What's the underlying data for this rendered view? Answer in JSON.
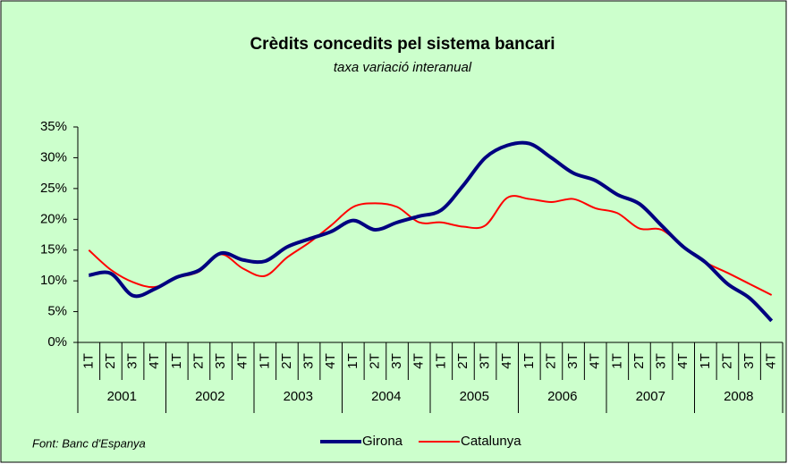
{
  "chart_data": {
    "type": "line",
    "title": "Crèdits concedits pel sistema bancari",
    "subtitle": "taxa variació interanual",
    "source": "Font: Banc d'Espanya",
    "categories": [
      "1T",
      "2T",
      "3T",
      "4T",
      "1T",
      "2T",
      "3T",
      "4T",
      "1T",
      "2T",
      "3T",
      "4T",
      "1T",
      "2T",
      "3T",
      "4T",
      "1T",
      "2T",
      "3T",
      "4T",
      "1T",
      "2T",
      "3T",
      "4T",
      "1T",
      "2T",
      "3T",
      "4T",
      "1T",
      "2T",
      "3T",
      "4T"
    ],
    "groups": [
      "2001",
      "2002",
      "2003",
      "2004",
      "2005",
      "2006",
      "2007",
      "2008"
    ],
    "series": [
      {
        "name": "Girona",
        "color": "#000080",
        "values": [
          10.9,
          11.2,
          7.6,
          8.7,
          10.6,
          11.7,
          14.5,
          13.4,
          13.2,
          15.5,
          16.8,
          18.0,
          19.8,
          18.3,
          19.5,
          20.5,
          21.5,
          25.5,
          30.0,
          32.0,
          32.3,
          30.0,
          27.5,
          26.3,
          24.0,
          22.5,
          19.0,
          15.5,
          13.0,
          9.5,
          7.2,
          3.5
        ]
      },
      {
        "name": "Catalunya",
        "color": "#ff0000",
        "values": [
          15.0,
          11.8,
          9.8,
          9.0,
          10.5,
          11.5,
          14.3,
          12.0,
          10.8,
          13.8,
          16.2,
          19.0,
          22.0,
          22.6,
          22.0,
          19.5,
          19.5,
          18.8,
          19.0,
          23.5,
          23.3,
          22.8,
          23.3,
          21.8,
          21.0,
          18.5,
          18.3,
          15.5,
          13.0,
          11.3,
          9.5,
          7.7
        ]
      }
    ],
    "ylim": [
      0,
      35
    ],
    "yticks": [
      {
        "value": 0,
        "label": "0%"
      },
      {
        "value": 5,
        "label": "5%"
      },
      {
        "value": 10,
        "label": "10%"
      },
      {
        "value": 15,
        "label": "15%"
      },
      {
        "value": 20,
        "label": "20%"
      },
      {
        "value": 25,
        "label": "25%"
      },
      {
        "value": 30,
        "label": "30%"
      },
      {
        "value": 35,
        "label": "35%"
      }
    ],
    "grid": false,
    "legend": "bottom"
  }
}
